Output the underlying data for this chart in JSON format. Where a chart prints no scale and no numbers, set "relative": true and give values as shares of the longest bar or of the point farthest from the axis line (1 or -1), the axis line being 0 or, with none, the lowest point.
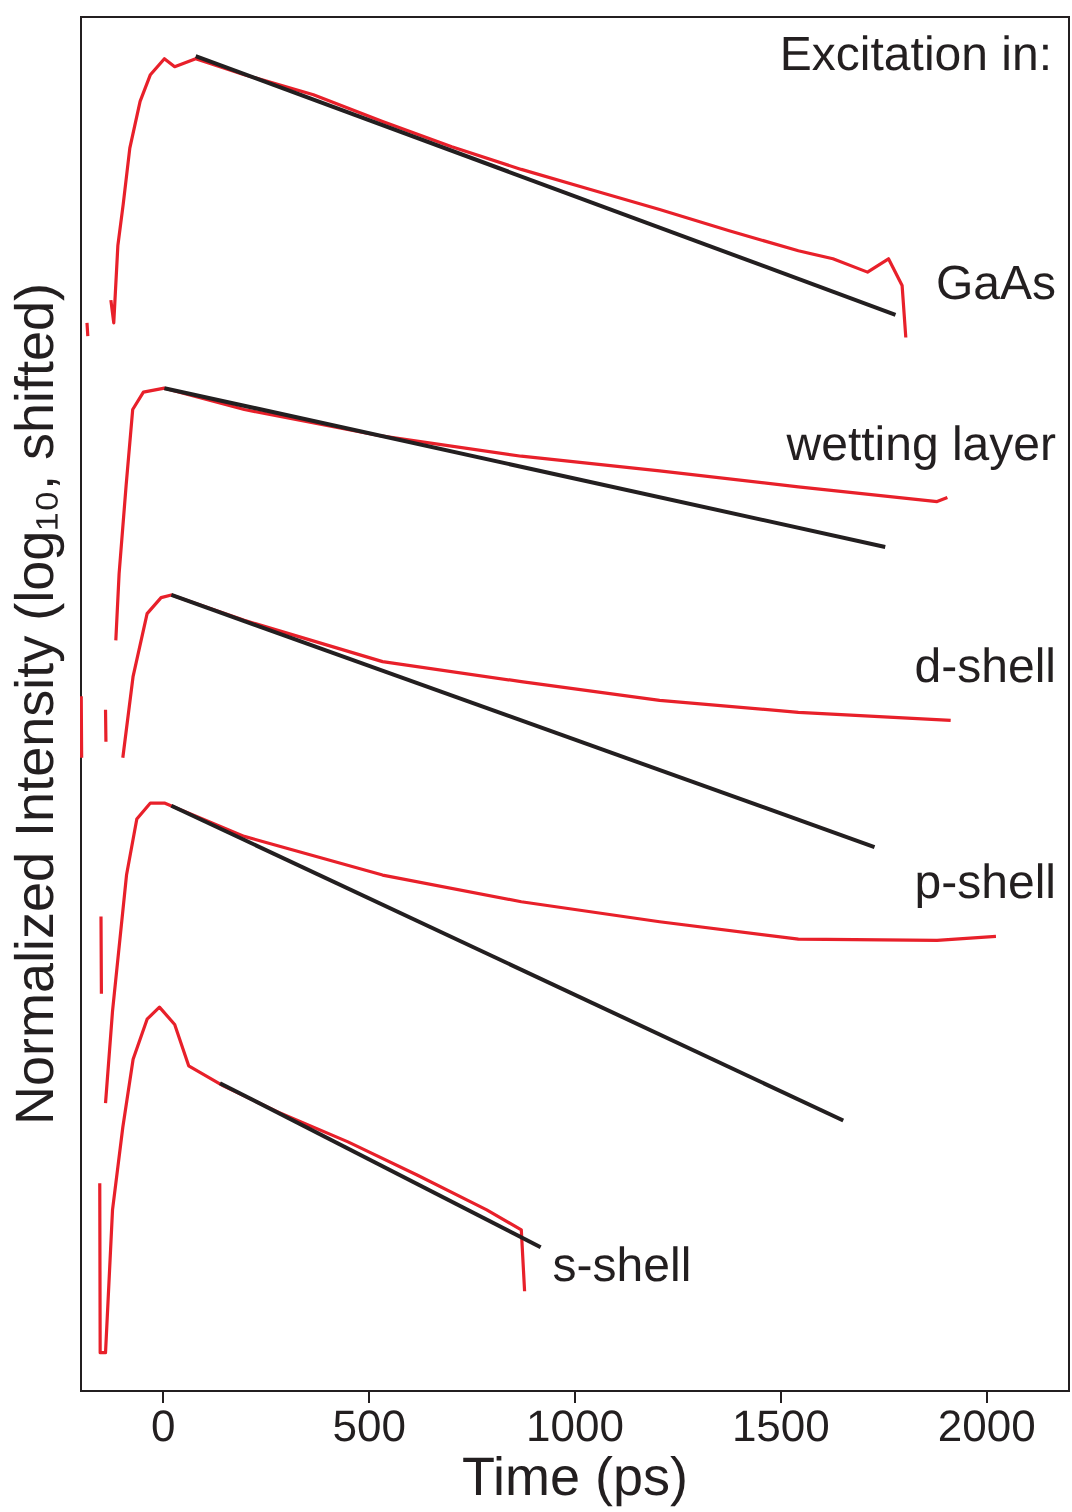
{
  "chart_data": {
    "type": "line",
    "relative": true,
    "xlabel": "Time (ps)",
    "ylabel": "Normalized Intensity (log₁₀, shifted)",
    "xlim": [
      -200,
      2200
    ],
    "xticks": [
      0,
      500,
      1000,
      1500,
      2000
    ],
    "grid": false,
    "annotations": [
      "Excitation in:"
    ],
    "series": [
      {
        "name": "GaAs",
        "color": "#e8202a",
        "x": [
          -183,
          -181,
          -150,
          -125,
          -118,
          -108,
          -95,
          -79,
          -54,
          -29,
          5,
          30,
          81,
          199,
          367,
          535,
          703,
          872,
          1040,
          1208,
          1377,
          1545,
          1629,
          1713,
          1764,
          1797,
          1806
        ],
        "values": [
          0.8,
          0.79,
          null,
          0.817,
          0.8,
          0.858,
          0.889,
          0.931,
          0.966,
          0.986,
          0.998,
          0.992,
          0.998,
          0.986,
          0.971,
          0.951,
          0.932,
          0.915,
          0.9,
          0.885,
          0.869,
          0.854,
          0.848,
          0.838,
          0.848,
          0.828,
          0.789
        ]
      },
      {
        "color": "#231f20",
        "x": [
          81,
          1781
        ],
        "values": [
          1,
          0.806
        ]
      },
      {
        "name": "wetting layer",
        "color": "#e8202a",
        "x": [
          -113,
          -105,
          -88,
          -72,
          -46,
          5,
          199,
          535,
          872,
          1208,
          1545,
          1882,
          1907
        ],
        "values": [
          0.562,
          0.612,
          0.678,
          0.735,
          0.748,
          0.751,
          0.735,
          0.715,
          0.7,
          0.689,
          0.677,
          0.666,
          0.669
        ]
      },
      {
        "color": "#231f20",
        "x": [
          5,
          1756
        ],
        "values": [
          0.751,
          0.632
        ]
      },
      {
        "name": "d-shell",
        "color": "#e8202a",
        "x": [
          -197,
          -196,
          -170,
          -138,
          -137,
          -110,
          -96,
          -71,
          -37,
          -3,
          22,
          199,
          535,
          872,
          1208,
          1545,
          1915
        ],
        "values": [
          0.52,
          0.474,
          null,
          0.51,
          0.486,
          null,
          0.474,
          0.535,
          0.582,
          0.594,
          0.596,
          0.577,
          0.546,
          0.531,
          0.517,
          0.508,
          0.502
        ]
      },
      {
        "color": "#231f20",
        "x": [
          22,
          1730
        ],
        "values": [
          0.596,
          0.407
        ]
      },
      {
        "name": "p-shell",
        "color": "#e8202a",
        "x": [
          -149,
          -148,
          -143,
          -138,
          -121,
          -104,
          -87,
          -62,
          -29,
          5,
          199,
          535,
          872,
          1208,
          1545,
          1882,
          2025
        ],
        "values": [
          0.355,
          0.297,
          null,
          0.215,
          0.284,
          0.335,
          0.386,
          0.428,
          0.44,
          0.44,
          0.415,
          0.386,
          0.366,
          0.351,
          0.338,
          0.337,
          0.34
        ]
      },
      {
        "color": "#231f20",
        "x": [
          22,
          1654
        ],
        "values": [
          0.438,
          0.202
        ]
      },
      {
        "name": "s-shell",
        "color": "#e8202a",
        "x": [
          -152,
          -151,
          -138,
          -121,
          -96,
          -71,
          -37,
          -7,
          30,
          64,
          148,
          283,
          451,
          620,
          788,
          872,
          880
        ],
        "values": [
          0.155,
          0.028,
          0.028,
          0.135,
          0.197,
          0.248,
          0.278,
          0.287,
          0.274,
          0.243,
          0.228,
          0.208,
          0.186,
          0.161,
          0.135,
          0.12,
          0.074
        ]
      },
      {
        "color": "#231f20",
        "x": [
          140,
          919
        ],
        "values": [
          0.23,
          0.107
        ]
      }
    ]
  }
}
